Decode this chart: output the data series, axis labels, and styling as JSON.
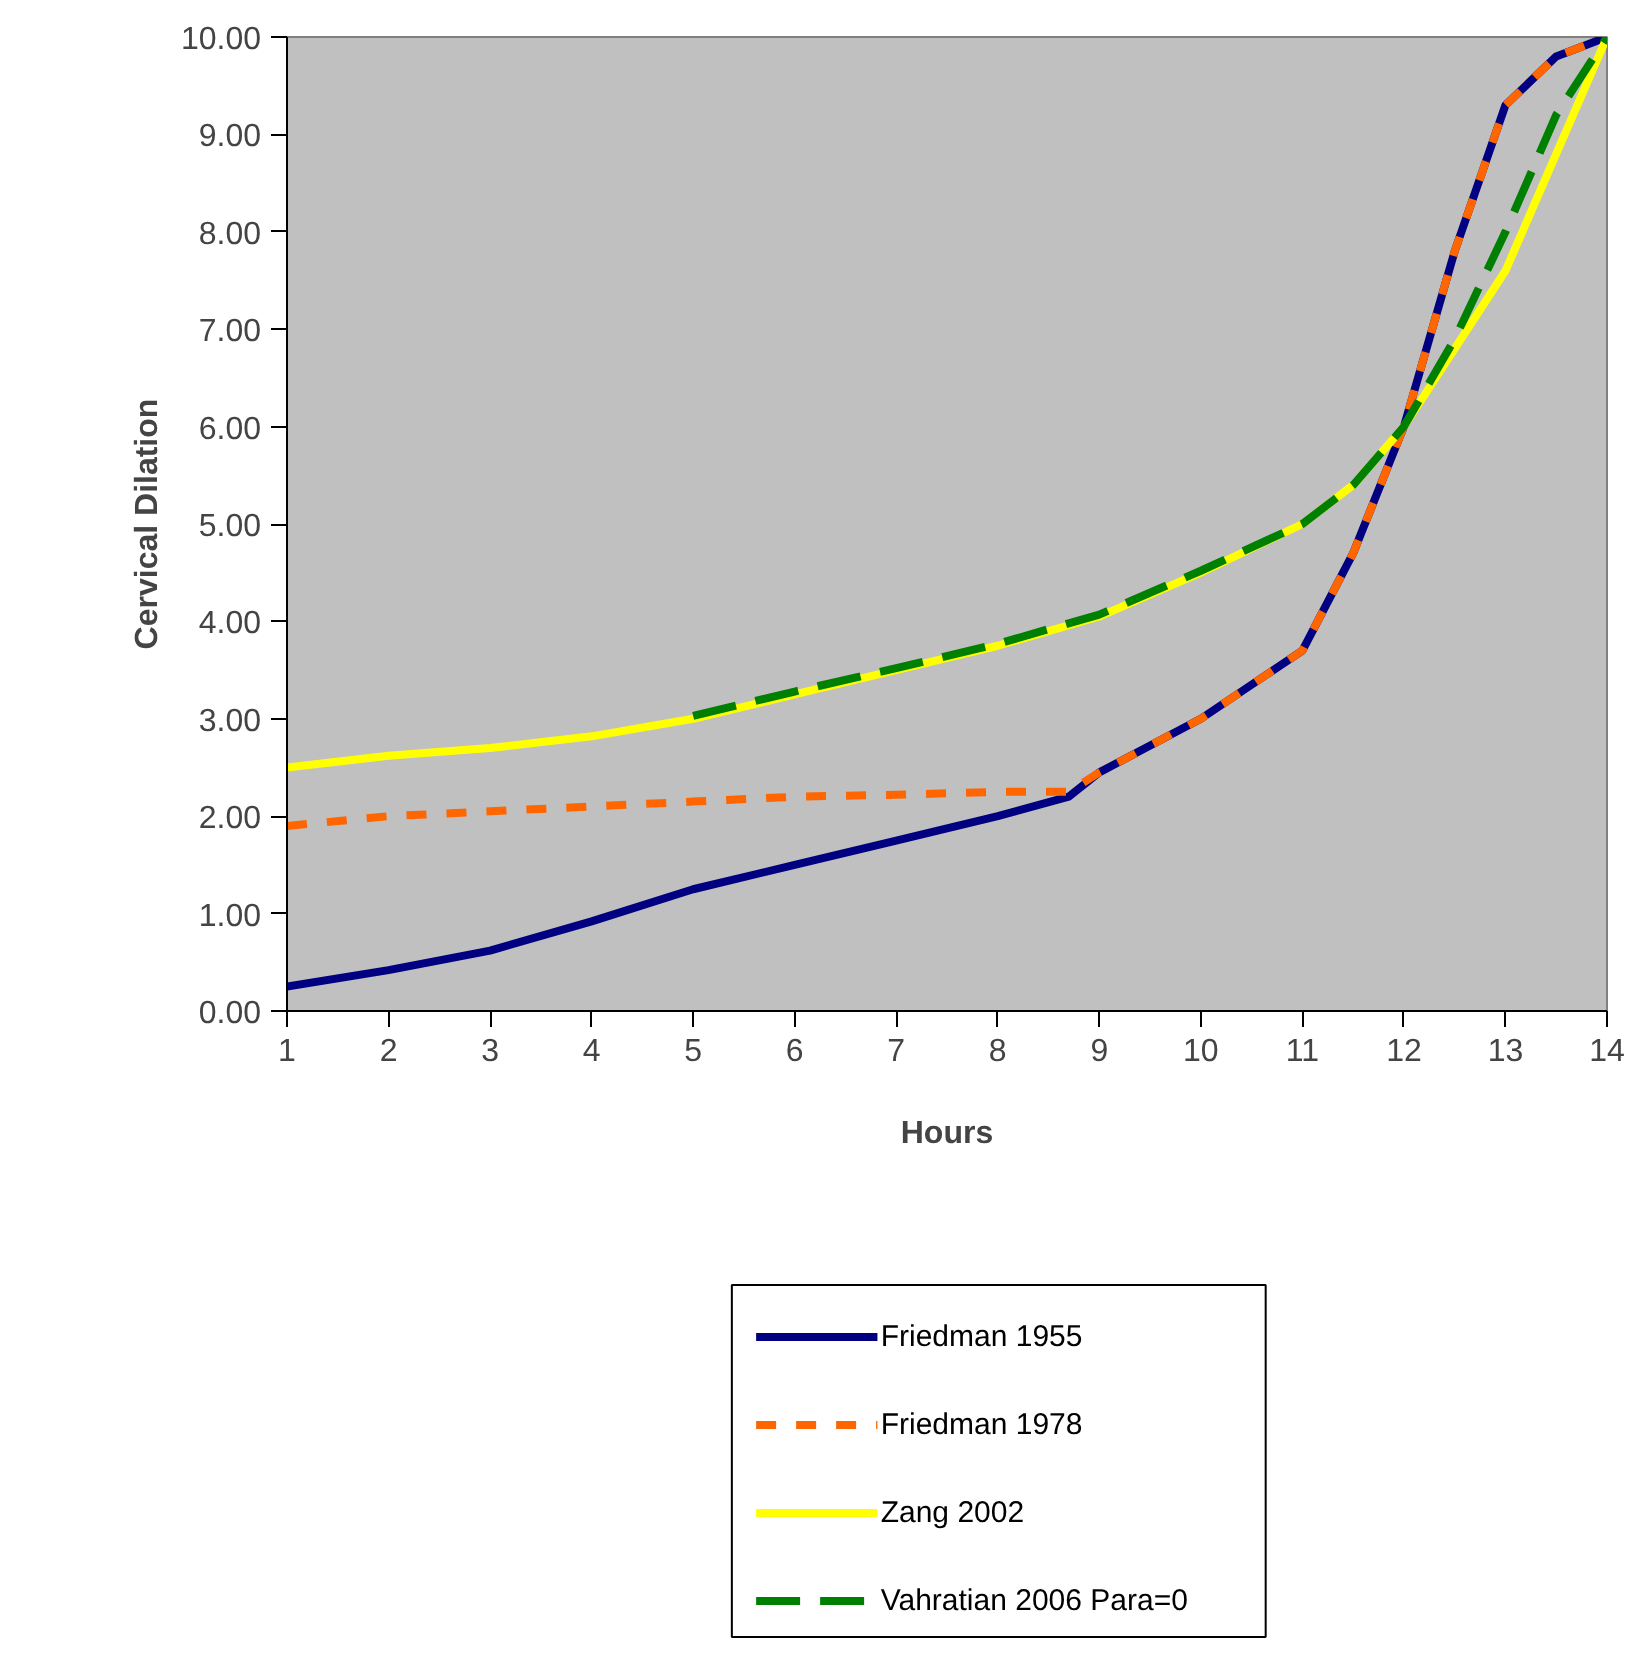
{
  "chart_data": {
    "type": "line",
    "xlabel": "Hours",
    "ylabel": "Cervical Dilation",
    "xlim": [
      1,
      14
    ],
    "xticks": [
      1,
      2,
      3,
      4,
      5,
      6,
      7,
      8,
      9,
      10,
      11,
      12,
      13,
      14
    ],
    "ylim": [
      0,
      10
    ],
    "yticks": [
      {
        "value": 0,
        "label": "0.00"
      },
      {
        "value": 1,
        "label": "1.00"
      },
      {
        "value": 2,
        "label": "2.00"
      },
      {
        "value": 3,
        "label": "3.00"
      },
      {
        "value": 4,
        "label": "4.00"
      },
      {
        "value": 5,
        "label": "5.00"
      },
      {
        "value": 6,
        "label": "6.00"
      },
      {
        "value": 7,
        "label": "7.00"
      },
      {
        "value": 8,
        "label": "8.00"
      },
      {
        "value": 9,
        "label": "9.00"
      },
      {
        "value": 10,
        "label": "10.00"
      }
    ],
    "grid": false,
    "legend": "bottom",
    "marker": "none",
    "series": [
      {
        "name": "Friedman 1955",
        "color": "#000080",
        "line_style": "solid",
        "x": [
          1,
          2,
          3,
          4,
          5,
          6,
          7,
          8,
          8.7,
          9,
          10,
          11,
          11.5,
          12,
          12.5,
          13,
          13.5,
          14
        ],
        "values": [
          0.25,
          0.42,
          0.62,
          0.92,
          1.25,
          1.5,
          1.75,
          2.0,
          2.2,
          2.45,
          3.0,
          3.7,
          4.7,
          6.0,
          7.8,
          9.3,
          9.8,
          10
        ]
      },
      {
        "name": "Friedman 1978",
        "color": "#ff6600",
        "line_style": "dashed",
        "x": [
          1,
          2,
          3,
          4,
          5,
          6,
          7,
          8,
          8.7,
          9,
          10,
          11,
          11.5,
          12,
          12.5,
          13,
          13.5,
          14
        ],
        "values": [
          1.9,
          2.0,
          2.05,
          2.1,
          2.15,
          2.2,
          2.22,
          2.25,
          2.25,
          2.45,
          3.0,
          3.7,
          4.7,
          6.0,
          7.8,
          9.3,
          9.8,
          10
        ]
      },
      {
        "name": "Zang 2002",
        "color": "#ffff00",
        "line_style": "solid",
        "x": [
          1,
          2,
          3,
          4,
          5,
          6,
          7,
          8,
          9,
          10,
          11,
          11.5,
          12,
          13,
          14
        ],
        "values": [
          2.5,
          2.62,
          2.7,
          2.82,
          3.0,
          3.25,
          3.5,
          3.75,
          4.05,
          4.5,
          5.0,
          5.4,
          6.0,
          7.6,
          10
        ]
      },
      {
        "name": "Vahratian 2006 Para=0",
        "color": "#008000",
        "line_style": "dashed",
        "x": [
          5,
          6,
          7,
          8,
          9,
          10,
          11,
          11.5,
          12,
          12.5,
          13,
          13.5,
          14
        ],
        "values": [
          3.03,
          3.28,
          3.52,
          3.77,
          4.07,
          4.52,
          5.0,
          5.4,
          6.0,
          6.9,
          8.0,
          9.2,
          10
        ]
      }
    ]
  }
}
